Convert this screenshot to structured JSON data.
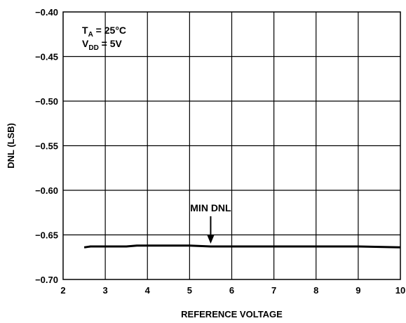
{
  "chart_data": {
    "type": "line",
    "title": "",
    "xlabel": "REFERENCE VOLTAGE",
    "ylabel": "DNL (LSB)",
    "xlim": [
      2,
      10
    ],
    "ylim": [
      -0.7,
      -0.4
    ],
    "x_ticks": [
      2,
      3,
      4,
      5,
      6,
      7,
      8,
      9,
      10
    ],
    "x_tick_labels": [
      "2",
      "3",
      "4",
      "5",
      "6",
      "7",
      "8",
      "9",
      "10"
    ],
    "y_ticks": [
      -0.4,
      -0.45,
      -0.5,
      -0.55,
      -0.6,
      -0.65,
      -0.7
    ],
    "y_tick_labels": [
      "−0.40",
      "−0.45",
      "−0.50",
      "−0.55",
      "−0.60",
      "−0.65",
      "−0.70"
    ],
    "grid": true,
    "series": [
      {
        "name": "MIN DNL",
        "x": [
          2.5,
          2.65,
          3.0,
          3.5,
          3.75,
          4.0,
          4.5,
          5.0,
          5.5,
          6.0,
          7.0,
          8.0,
          9.0,
          10.0
        ],
        "y": [
          -0.664,
          -0.663,
          -0.663,
          -0.663,
          -0.662,
          -0.662,
          -0.662,
          -0.662,
          -0.663,
          -0.663,
          -0.663,
          -0.663,
          -0.663,
          -0.664
        ]
      }
    ],
    "annotations": {
      "conditions": [
        {
          "main": "T",
          "sub": "A",
          "rest": " = 25°C"
        },
        {
          "main": "V",
          "sub": "DD",
          "rest": " = 5V"
        }
      ],
      "arrow_label": "MIN DNL",
      "arrow_x": 5.5
    }
  }
}
